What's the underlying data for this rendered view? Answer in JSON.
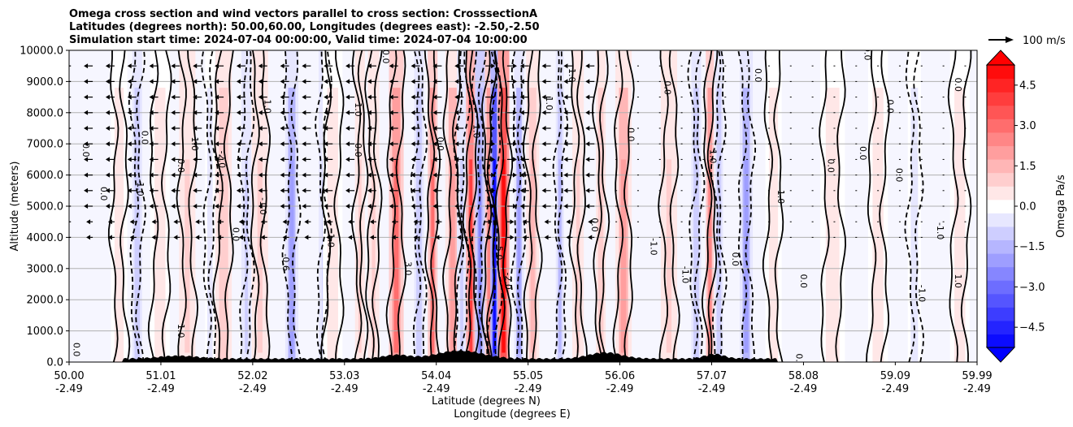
{
  "chart_data": {
    "type": "filled-contour",
    "title_lines": [
      "Omega cross section and wind vectors parallel to cross section: CrosssectionA",
      "Latitudes (degrees north): 50.00,60.00, Longitudes (degrees east): -2.50,-2.50",
      "Simulation start time: 2024-07-04 00:00:00, Valid time: 2024-07-04 10:00:00"
    ],
    "ylabel": "Altitude (meters)",
    "xlabel_lat": "Latitude (degrees N)",
    "xlabel_lon": "Longitude (degrees E)",
    "xlim": [
      50.0,
      59.99
    ],
    "ylim": [
      0,
      10000
    ],
    "xticks": [
      {
        "value": 50.0,
        "lat": "50.00",
        "lon": "-2.49"
      },
      {
        "value": 51.01,
        "lat": "51.01",
        "lon": "-2.49"
      },
      {
        "value": 52.02,
        "lat": "52.02",
        "lon": "-2.49"
      },
      {
        "value": 53.03,
        "lat": "53.03",
        "lon": "-2.49"
      },
      {
        "value": 54.04,
        "lat": "54.04",
        "lon": "-2.49"
      },
      {
        "value": 55.05,
        "lat": "55.05",
        "lon": "-2.49"
      },
      {
        "value": 56.06,
        "lat": "56.06",
        "lon": "-2.49"
      },
      {
        "value": 57.07,
        "lat": "57.07",
        "lon": "-2.49"
      },
      {
        "value": 58.08,
        "lat": "58.08",
        "lon": "-2.49"
      },
      {
        "value": 59.09,
        "lat": "59.09",
        "lon": "-2.49"
      },
      {
        "value": 59.99,
        "lat": "59.99",
        "lon": "-2.49"
      }
    ],
    "yticks": [
      {
        "value": 0,
        "label": "0.0"
      },
      {
        "value": 1000,
        "label": "1000.0"
      },
      {
        "value": 2000,
        "label": "2000.0"
      },
      {
        "value": 3000,
        "label": "3000.0"
      },
      {
        "value": 4000,
        "label": "4000.0"
      },
      {
        "value": 5000,
        "label": "5000.0"
      },
      {
        "value": 6000,
        "label": "6000.0"
      },
      {
        "value": 7000,
        "label": "7000.0"
      },
      {
        "value": 8000,
        "label": "8000.0"
      },
      {
        "value": 9000,
        "label": "9000.0"
      },
      {
        "value": 10000,
        "label": "10000.0"
      }
    ],
    "grid": "horizontal",
    "colorbar": {
      "label": "Omega Pa/s",
      "vmin": -5.25,
      "vmax": 5.25,
      "step": 0.5,
      "extend": "both",
      "colormap": "bwr",
      "ticks": [
        {
          "value": 4.5,
          "label": "4.5"
        },
        {
          "value": 3.0,
          "label": "3.0"
        },
        {
          "value": 1.5,
          "label": "1.5"
        },
        {
          "value": 0.0,
          "label": "0.0"
        },
        {
          "value": -1.5,
          "label": "−1.5"
        },
        {
          "value": -3.0,
          "label": "−3.0"
        },
        {
          "value": -4.5,
          "label": "−4.5"
        }
      ]
    },
    "quiver_key": {
      "label": "100 m/s",
      "speed": 100
    },
    "wind_vector_direction": "northward (right) near 54.5–55.0 N, southward (left) elsewhere in upper levels",
    "bands": [
      {
        "lat": 50.55,
        "width": 0.1,
        "omega": 0.6
      },
      {
        "lat": 50.75,
        "width": 0.06,
        "omega": -1.2
      },
      {
        "lat": 51.0,
        "width": 0.12,
        "omega": 0.5
      },
      {
        "lat": 51.3,
        "width": 0.1,
        "omega": 0.8
      },
      {
        "lat": 51.55,
        "width": 0.06,
        "omega": -0.7
      },
      {
        "lat": 51.7,
        "width": 0.1,
        "omega": 1.2
      },
      {
        "lat": 51.95,
        "width": 0.06,
        "omega": -0.8
      },
      {
        "lat": 52.1,
        "width": 0.1,
        "omega": 0.9
      },
      {
        "lat": 52.45,
        "width": 0.08,
        "omega": -2.0
      },
      {
        "lat": 52.8,
        "width": 0.06,
        "omega": -0.8
      },
      {
        "lat": 52.9,
        "width": 0.12,
        "omega": 0.6
      },
      {
        "lat": 53.2,
        "width": 0.06,
        "omega": 0.8
      },
      {
        "lat": 53.35,
        "width": 0.07,
        "omega": 0.9
      },
      {
        "lat": 53.6,
        "width": 0.09,
        "omega": 3.0
      },
      {
        "lat": 53.85,
        "width": 0.06,
        "omega": -1.2
      },
      {
        "lat": 54.0,
        "width": 0.06,
        "omega": 3.2
      },
      {
        "lat": 54.22,
        "width": 0.09,
        "omega": 1.8
      },
      {
        "lat": 54.32,
        "width": 0.06,
        "omega": -1.0
      },
      {
        "lat": 54.42,
        "width": 0.06,
        "omega": 3.8
      },
      {
        "lat": 54.52,
        "width": 0.06,
        "omega": -2.5
      },
      {
        "lat": 54.62,
        "width": 0.05,
        "omega": 2.5
      },
      {
        "lat": 54.68,
        "width": 0.05,
        "omega": -5.0
      },
      {
        "lat": 54.78,
        "width": 0.07,
        "omega": 5.2
      },
      {
        "lat": 54.95,
        "width": 0.06,
        "omega": -1.8
      },
      {
        "lat": 55.1,
        "width": 0.08,
        "omega": 1.6
      },
      {
        "lat": 55.4,
        "width": 0.05,
        "omega": -1.5
      },
      {
        "lat": 55.6,
        "width": 0.07,
        "omega": 0.8
      },
      {
        "lat": 55.85,
        "width": 0.06,
        "omega": 1.2
      },
      {
        "lat": 56.1,
        "width": 0.1,
        "omega": 2.0
      },
      {
        "lat": 56.6,
        "width": 0.1,
        "omega": 1.0
      },
      {
        "lat": 56.9,
        "width": 0.06,
        "omega": -1.2
      },
      {
        "lat": 57.05,
        "width": 0.05,
        "omega": 2.5
      },
      {
        "lat": 57.15,
        "width": 0.05,
        "omega": -1.2
      },
      {
        "lat": 57.45,
        "width": 0.08,
        "omega": -2.0
      },
      {
        "lat": 57.75,
        "width": 0.1,
        "omega": 0.5
      },
      {
        "lat": 58.4,
        "width": 0.15,
        "omega": 0.5
      },
      {
        "lat": 58.9,
        "width": 0.12,
        "omega": 0.6
      },
      {
        "lat": 59.3,
        "width": 0.08,
        "omega": -0.6
      },
      {
        "lat": 59.8,
        "width": 0.12,
        "omega": 0.4
      }
    ],
    "inline_contour_labels": [
      {
        "lat": 50.15,
        "alt": 6800,
        "text": "0.0"
      },
      {
        "lat": 50.35,
        "alt": 5400,
        "text": "0.0"
      },
      {
        "lat": 50.75,
        "alt": 5600,
        "text": "-1.0"
      },
      {
        "lat": 50.8,
        "alt": 7200,
        "text": "0.0"
      },
      {
        "lat": 51.2,
        "alt": 6300,
        "text": "0.0"
      },
      {
        "lat": 51.35,
        "alt": 7000,
        "text": "1.0"
      },
      {
        "lat": 51.65,
        "alt": 6500,
        "text": "-2.0"
      },
      {
        "lat": 51.2,
        "alt": 1000,
        "text": "1.0"
      },
      {
        "lat": 51.8,
        "alt": 4100,
        "text": "0.0"
      },
      {
        "lat": 52.1,
        "alt": 5000,
        "text": "-1.0"
      },
      {
        "lat": 52.15,
        "alt": 8200,
        "text": "1.0"
      },
      {
        "lat": 52.35,
        "alt": 3200,
        "text": "-0.6"
      },
      {
        "lat": 52.85,
        "alt": 3900,
        "text": "1.0"
      },
      {
        "lat": 53.15,
        "alt": 8100,
        "text": "1.0"
      },
      {
        "lat": 53.15,
        "alt": 6800,
        "text": "0.0"
      },
      {
        "lat": 53.7,
        "alt": 3000,
        "text": "3.0"
      },
      {
        "lat": 53.45,
        "alt": 9800,
        "text": "0.0"
      },
      {
        "lat": 54.05,
        "alt": 7000,
        "text": "0.0"
      },
      {
        "lat": 54.45,
        "alt": 7400,
        "text": "1.0"
      },
      {
        "lat": 54.7,
        "alt": 3500,
        "text": "5.0"
      },
      {
        "lat": 54.8,
        "alt": 2600,
        "text": "-2.0"
      },
      {
        "lat": 55.25,
        "alt": 8300,
        "text": "1.0"
      },
      {
        "lat": 55.5,
        "alt": 9200,
        "text": "1.0"
      },
      {
        "lat": 55.75,
        "alt": 4400,
        "text": "0.0"
      },
      {
        "lat": 56.15,
        "alt": 7300,
        "text": "0.0"
      },
      {
        "lat": 56.55,
        "alt": 8800,
        "text": "0.0"
      },
      {
        "lat": 56.4,
        "alt": 3700,
        "text": "-1.0"
      },
      {
        "lat": 56.75,
        "alt": 2800,
        "text": "-1.0"
      },
      {
        "lat": 57.05,
        "alt": 6600,
        "text": "1.0"
      },
      {
        "lat": 57.3,
        "alt": 3300,
        "text": "0.0"
      },
      {
        "lat": 57.55,
        "alt": 9200,
        "text": "0.0"
      },
      {
        "lat": 57.8,
        "alt": 5300,
        "text": "1.0"
      },
      {
        "lat": 58.05,
        "alt": 2600,
        "text": "0.0"
      },
      {
        "lat": 58.35,
        "alt": 6300,
        "text": "0.0"
      },
      {
        "lat": 58.7,
        "alt": 6700,
        "text": "0.0"
      },
      {
        "lat": 58.75,
        "alt": 9900,
        "text": "0.0"
      },
      {
        "lat": 59.0,
        "alt": 8200,
        "text": "0.0"
      },
      {
        "lat": 59.1,
        "alt": 6000,
        "text": "0.0"
      },
      {
        "lat": 59.35,
        "alt": 2200,
        "text": "-1.0"
      },
      {
        "lat": 59.55,
        "alt": 4200,
        "text": "-1.0"
      },
      {
        "lat": 59.75,
        "alt": 2600,
        "text": "1.0"
      },
      {
        "lat": 59.75,
        "alt": 8900,
        "text": "0.0"
      },
      {
        "lat": 50.05,
        "alt": 400,
        "text": "0.0"
      },
      {
        "lat": 58.0,
        "alt": 50,
        "text": "0.0"
      }
    ]
  }
}
